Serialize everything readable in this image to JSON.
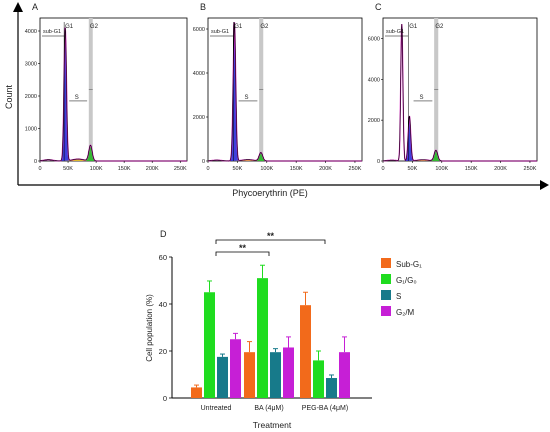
{
  "flow": {
    "ylabel": "Count",
    "xlabel": "Phycoerythrin (PE)",
    "panels": [
      {
        "letter": "A",
        "yticks": [
          "0",
          "1000",
          "2000",
          "3000",
          "4000"
        ],
        "ymax": 4400,
        "xticks": [
          "0",
          "50K",
          "100K",
          "150K",
          "200K",
          "250K"
        ],
        "gates": {
          "subg1": "sub-G1",
          "g1": "G1",
          "s": "S",
          "g2": "G2"
        }
      },
      {
        "letter": "B",
        "yticks": [
          "0",
          "2000",
          "4000",
          "6000"
        ],
        "ymax": 6500,
        "xticks": [
          "0",
          "50K",
          "100K",
          "150K",
          "200K",
          "250K"
        ],
        "gates": {
          "subg1": "sub-G1",
          "g1": "G1",
          "s": "S",
          "g2": "G2"
        }
      },
      {
        "letter": "C",
        "yticks": [
          "0",
          "2000",
          "4000",
          "6000"
        ],
        "ymax": 7000,
        "xticks": [
          "0",
          "50K",
          "100K",
          "150K",
          "200K",
          "250K"
        ],
        "gates": {
          "subg1": "sub-G1",
          "g1": "G1",
          "s": "S",
          "g2": "G2"
        }
      }
    ],
    "colors": {
      "outline": "#000000",
      "g1": "#2a2ad8",
      "s": "#e8c020",
      "g2": "#22b822",
      "envelope": "#e020c8",
      "gate": "#c8c8c8"
    }
  },
  "chart_data": {
    "panel_letter": "D",
    "type": "bar",
    "categories": [
      "Untreated",
      "BA (4μM)",
      "PEG-BA (4μM)"
    ],
    "series": [
      {
        "name": "Sub-G₁",
        "color": "#f26a1b",
        "values": [
          4.5,
          19.5,
          39.5
        ],
        "errors": [
          1.0,
          4.5,
          5.5
        ]
      },
      {
        "name": "G₁/G₀",
        "color": "#1fdc1f",
        "values": [
          45,
          51,
          16
        ],
        "errors": [
          4.8,
          5.5,
          4.0
        ]
      },
      {
        "name": "S",
        "color": "#177a8a",
        "values": [
          17.5,
          19.5,
          8.5
        ],
        "errors": [
          1.2,
          1.5,
          1.3
        ]
      },
      {
        "name": "G₂/M",
        "color": "#c61fd6",
        "values": [
          25,
          21.5,
          19.5
        ],
        "errors": [
          2.5,
          4.5,
          6.5
        ]
      }
    ],
    "xlabel": "Treatment",
    "ylabel": "Cell population (%)",
    "ylim": [
      0,
      60
    ],
    "yticks": [
      0,
      20,
      40,
      60
    ],
    "legend": "right",
    "annotations": [
      {
        "label": "**",
        "from": "Untreated",
        "to": "PEG-BA (4μM)"
      },
      {
        "label": "**",
        "from": "Untreated",
        "to": "BA (4μM)"
      }
    ]
  }
}
